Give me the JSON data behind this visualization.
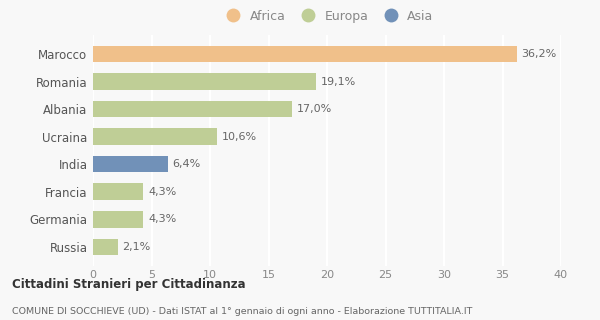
{
  "categories": [
    "Marocco",
    "Romania",
    "Albania",
    "Ucraina",
    "India",
    "Francia",
    "Germania",
    "Russia"
  ],
  "values": [
    36.2,
    19.1,
    17.0,
    10.6,
    6.4,
    4.3,
    4.3,
    2.1
  ],
  "labels": [
    "36,2%",
    "19,1%",
    "17,0%",
    "10,6%",
    "6,4%",
    "4,3%",
    "4,3%",
    "2,1%"
  ],
  "colors": [
    "#f0c08a",
    "#bfce96",
    "#bfce96",
    "#bfce96",
    "#7191b8",
    "#bfce96",
    "#bfce96",
    "#bfce96"
  ],
  "legend_items": [
    {
      "label": "Africa",
      "color": "#f0c08a"
    },
    {
      "label": "Europa",
      "color": "#bfce96"
    },
    {
      "label": "Asia",
      "color": "#7191b8"
    }
  ],
  "xlim": [
    0,
    40
  ],
  "xticks": [
    0,
    5,
    10,
    15,
    20,
    25,
    30,
    35,
    40
  ],
  "title_bold": "Cittadini Stranieri per Cittadinanza",
  "subtitle": "COMUNE DI SOCCHIEVE (UD) - Dati ISTAT al 1° gennaio di ogni anno - Elaborazione TUTTITALIA.IT",
  "bg_color": "#f8f8f8",
  "grid_color": "#ffffff",
  "bar_height": 0.6
}
